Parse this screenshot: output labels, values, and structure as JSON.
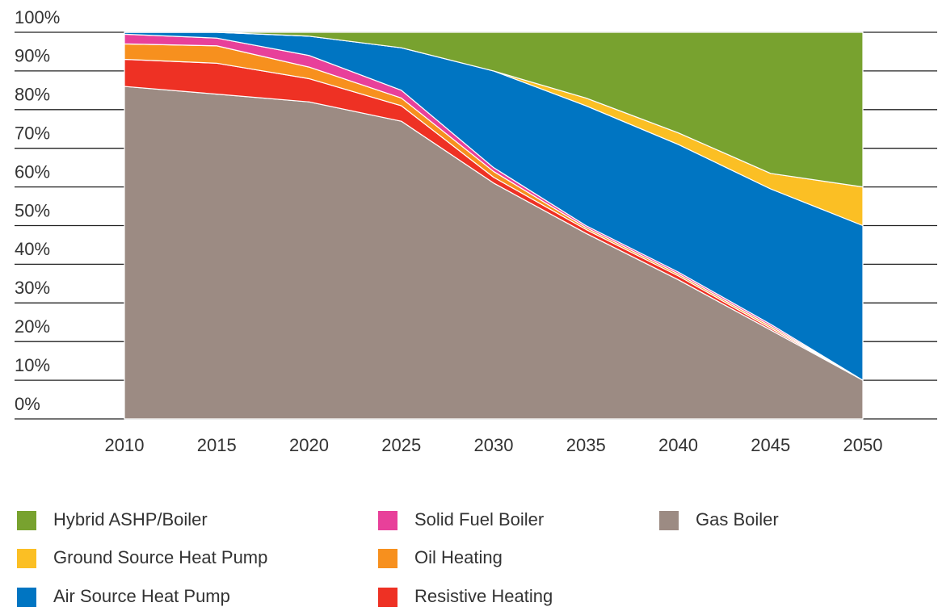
{
  "chart_data": {
    "type": "stacked_area",
    "x": [
      2010,
      2015,
      2020,
      2025,
      2030,
      2035,
      2040,
      2045,
      2050
    ],
    "xlim": [
      2010,
      2050
    ],
    "xticks": [
      2010,
      2015,
      2020,
      2025,
      2030,
      2035,
      2040,
      2045,
      2050
    ],
    "ylim": [
      0,
      100
    ],
    "yticks": [
      {
        "value": 0,
        "label": "0%"
      },
      {
        "value": 10,
        "label": "10%"
      },
      {
        "value": 20,
        "label": "20%"
      },
      {
        "value": 30,
        "label": "30%"
      },
      {
        "value": 40,
        "label": "40%"
      },
      {
        "value": 50,
        "label": "50%"
      },
      {
        "value": 60,
        "label": "60%"
      },
      {
        "value": 70,
        "label": "70%"
      },
      {
        "value": 80,
        "label": "80%"
      },
      {
        "value": 90,
        "label": "90%"
      },
      {
        "value": 100,
        "label": "100%"
      }
    ],
    "grid": true,
    "legend": "bottom",
    "series": [
      {
        "name": "Hybrid ASHP/Boiler",
        "color": "#78a22f",
        "values": [
          0,
          0,
          1,
          4,
          10,
          17,
          26,
          36.5,
          40
        ]
      },
      {
        "name": "Ground Source Heat Pump",
        "color": "#fbbf24",
        "values": [
          0,
          0,
          0,
          0,
          0,
          2,
          3,
          4,
          10
        ]
      },
      {
        "name": "Air Source Heat Pump",
        "color": "#0075c2",
        "values": [
          0.5,
          1.5,
          5,
          11,
          25,
          31,
          33,
          35,
          40
        ]
      },
      {
        "name": "Solid Fuel Boiler",
        "color": "#e8409a",
        "values": [
          2.5,
          2,
          3,
          2,
          1,
          0.5,
          0.5,
          0.5,
          0
        ]
      },
      {
        "name": "Oil Heating",
        "color": "#f7901e",
        "values": [
          4,
          4.5,
          3,
          2,
          1.5,
          0.5,
          0.5,
          0.5,
          0
        ]
      },
      {
        "name": "Resistive Heating",
        "color": "#ee3124",
        "values": [
          7,
          8,
          6,
          4,
          1.5,
          1,
          1,
          0.5,
          0
        ]
      },
      {
        "name": "Gas Boiler",
        "color": "#9c8b83",
        "values": [
          86,
          84,
          82,
          77,
          61,
          48,
          36,
          23,
          10
        ]
      }
    ]
  }
}
